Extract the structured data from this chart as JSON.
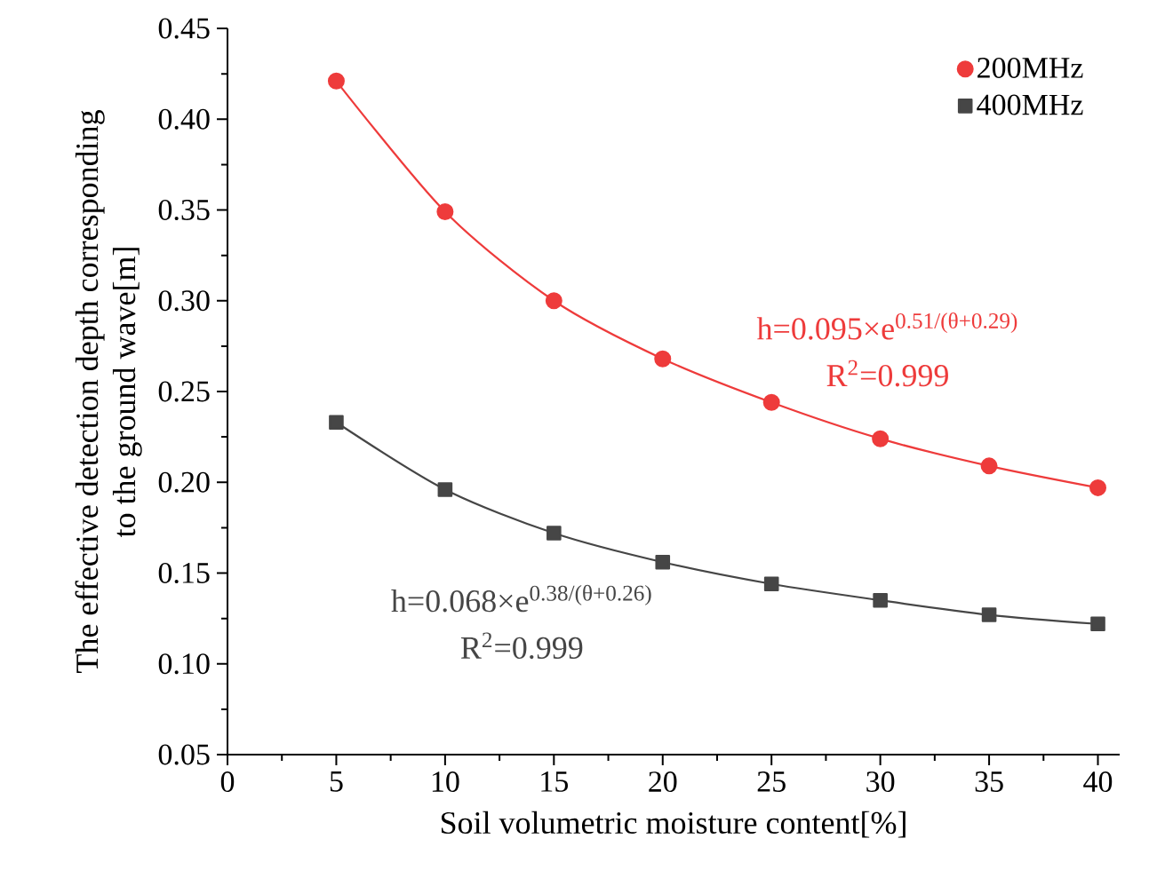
{
  "chart_data": {
    "type": "line",
    "xlabel": "Soil volumetric moisture content[%]",
    "ylabel": "The effective detection depth corresponding to the ground wave[m]",
    "x": [
      5,
      10,
      15,
      20,
      25,
      30,
      35,
      40
    ],
    "series": [
      {
        "name": "200MHz",
        "color": "#ee3b3b",
        "marker": "circle",
        "values": [
          0.421,
          0.349,
          0.3,
          0.268,
          0.244,
          0.224,
          0.209,
          0.197
        ]
      },
      {
        "name": "400MHz",
        "color": "#464646",
        "marker": "square",
        "values": [
          0.233,
          0.196,
          0.172,
          0.156,
          0.144,
          0.135,
          0.127,
          0.122
        ]
      }
    ],
    "annotations": [
      "h=0.095×e$^{0.51/(θ+0.29)}$",
      "R$^{2}$=0.999",
      "h=0.068×e$^{0.38/(θ+0.26)}$",
      "R$^{2}$=0.999"
    ],
    "xlim": [
      0,
      41
    ],
    "xticks": [
      0,
      5,
      10,
      15,
      20,
      25,
      30,
      35,
      40
    ],
    "ylim": [
      0.05,
      0.45
    ],
    "yticks": [
      {
        "value": 0.05,
        "label": "0.05"
      },
      {
        "value": 0.1,
        "label": "0.10"
      },
      {
        "value": 0.15,
        "label": "0.15"
      },
      {
        "value": 0.2,
        "label": "0.20"
      },
      {
        "value": 0.25,
        "label": "0.25"
      },
      {
        "value": 0.3,
        "label": "0.30"
      },
      {
        "value": 0.35,
        "label": "0.35"
      },
      {
        "value": 0.4,
        "label": "0.40"
      },
      {
        "value": 0.45,
        "label": "0.45"
      }
    ],
    "grid": false,
    "legend": "top right",
    "line_style": "solid"
  }
}
